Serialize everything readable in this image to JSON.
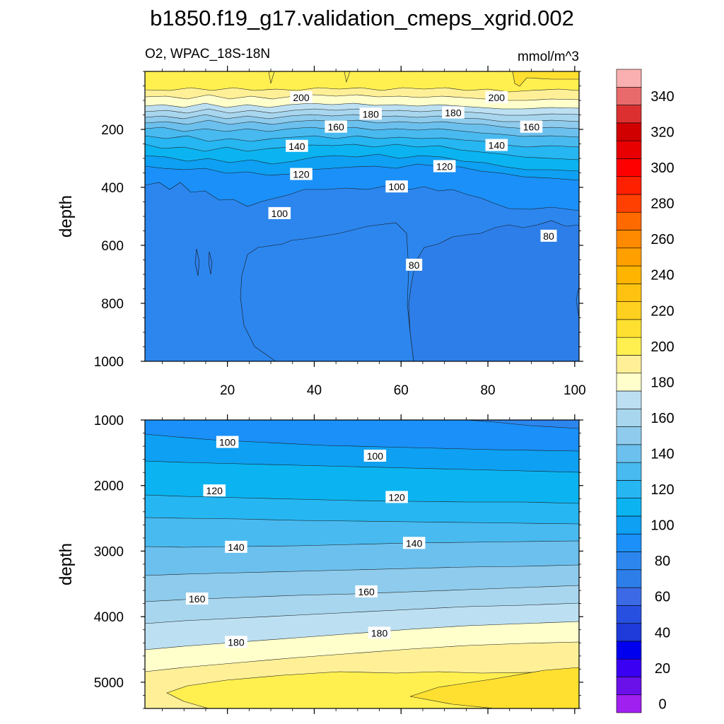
{
  "chart_data": {
    "type": "heatmap",
    "title": "b1850.f19_g17.validation_cmeps_xgrid.002",
    "variable_label": "O2, WPAC_18S-18N",
    "units_label": "mmol/m^3",
    "ylabel": "depth",
    "xlim": [
      1,
      101
    ],
    "x_ticks": [
      20,
      40,
      60,
      80,
      100
    ],
    "upper_panel": {
      "ylim": [
        1000,
        0
      ],
      "y_ticks": [
        200,
        400,
        600,
        800,
        1000
      ],
      "contour_labels": [
        {
          "text": "200",
          "x": 37,
          "depth": 90
        },
        {
          "text": "200",
          "x": 82,
          "depth": 90
        },
        {
          "text": "180",
          "x": 53,
          "depth": 147
        },
        {
          "text": "180",
          "x": 72,
          "depth": 143
        },
        {
          "text": "160",
          "x": 45,
          "depth": 192
        },
        {
          "text": "160",
          "x": 90,
          "depth": 192
        },
        {
          "text": "140",
          "x": 36,
          "depth": 258
        },
        {
          "text": "140",
          "x": 82,
          "depth": 255
        },
        {
          "text": "120",
          "x": 37,
          "depth": 355
        },
        {
          "text": "120",
          "x": 70,
          "depth": 328
        },
        {
          "text": "100",
          "x": 59,
          "depth": 398
        },
        {
          "text": "100",
          "x": 32,
          "depth": 490
        },
        {
          "text": "80",
          "x": 63,
          "depth": 668
        },
        {
          "text": "80",
          "x": 94,
          "depth": 568
        }
      ]
    },
    "lower_panel": {
      "ylim": [
        5400,
        1000
      ],
      "y_ticks": [
        1000,
        2000,
        3000,
        4000,
        5000
      ],
      "contour_labels": [
        {
          "text": "100",
          "x": 20,
          "depth": 1340
        },
        {
          "text": "100",
          "x": 54,
          "depth": 1550
        },
        {
          "text": "120",
          "x": 17,
          "depth": 2080
        },
        {
          "text": "120",
          "x": 59,
          "depth": 2180
        },
        {
          "text": "140",
          "x": 22,
          "depth": 2940
        },
        {
          "text": "140",
          "x": 63,
          "depth": 2880
        },
        {
          "text": "160",
          "x": 13,
          "depth": 3730
        },
        {
          "text": "160",
          "x": 52,
          "depth": 3620
        },
        {
          "text": "180",
          "x": 22,
          "depth": 4390
        },
        {
          "text": "180",
          "x": 55,
          "depth": 4250
        }
      ]
    },
    "colorbar": {
      "levels": [
        0,
        10,
        20,
        30,
        40,
        50,
        60,
        70,
        80,
        90,
        100,
        110,
        120,
        130,
        140,
        150,
        160,
        170,
        180,
        190,
        200,
        210,
        220,
        230,
        240,
        250,
        260,
        270,
        280,
        290,
        300,
        310,
        320,
        330,
        340,
        350
      ],
      "labels": [
        "0",
        "20",
        "40",
        "60",
        "80",
        "100",
        "120",
        "140",
        "160",
        "180",
        "200",
        "220",
        "240",
        "260",
        "280",
        "300",
        "320",
        "340"
      ],
      "colors": [
        "#a020f0",
        "#6a10e8",
        "#3a00f2",
        "#0000ee",
        "#1e3ad8",
        "#2850e0",
        "#3c6ae6",
        "#2d7ee8",
        "#2c86ee",
        "#1a90f8",
        "#0ea0f2",
        "#0bb4f0",
        "#26b6f2",
        "#48baf0",
        "#6cc0ee",
        "#8ecbec",
        "#a8d6ee",
        "#bce0f2",
        "#ffffcc",
        "#fff098",
        "#fff050",
        "#ffe030",
        "#ffd020",
        "#ffc210",
        "#ffb400",
        "#ffa000",
        "#ff8a00",
        "#ff6a00",
        "#ff4000",
        "#ff2000",
        "#ff0000",
        "#e80000",
        "#d00000",
        "#dc3030",
        "#e86a6a",
        "#fab0b0"
      ]
    }
  }
}
